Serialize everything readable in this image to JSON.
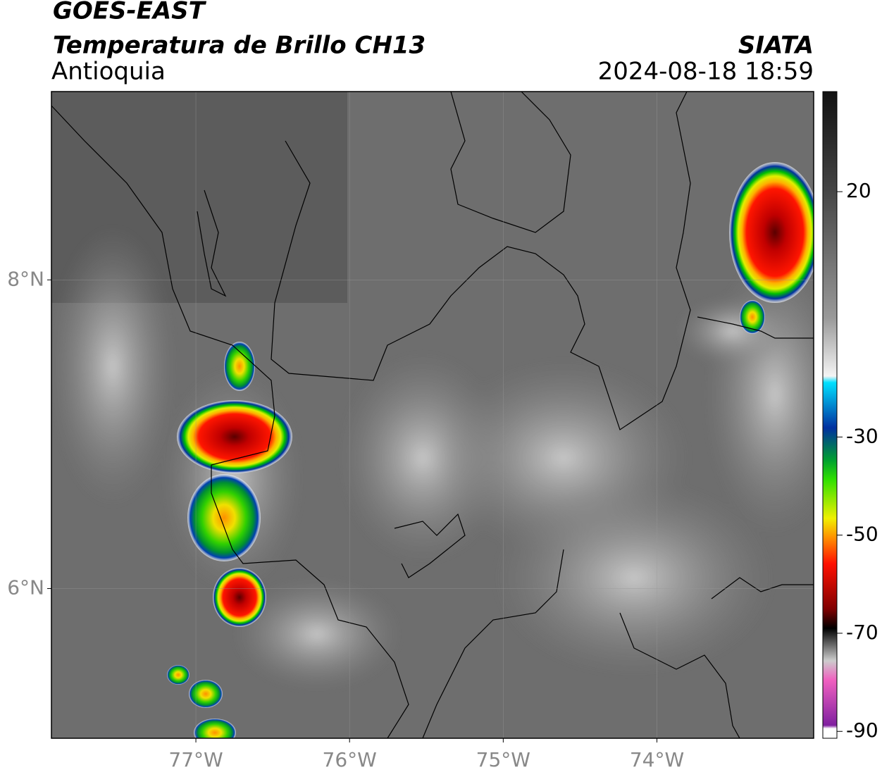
{
  "header": {
    "title": "GOES-EAST",
    "subtitle": "Temperatura de Brillo CH13",
    "region": "Antioquia",
    "source": "SIATA",
    "datetime": "2024-08-18 18:59"
  },
  "map": {
    "xlim": [
      -77.94,
      -72.98
    ],
    "ylim": [
      5.03,
      9.22
    ],
    "xticks": [
      {
        "value": -77,
        "label": "77°W"
      },
      {
        "value": -76,
        "label": "76°W"
      },
      {
        "value": -75,
        "label": "75°W"
      },
      {
        "value": -74,
        "label": "74°W"
      }
    ],
    "yticks": [
      {
        "value": 6,
        "label": "6°N"
      },
      {
        "value": 8,
        "label": "8°N"
      }
    ],
    "grid": true
  },
  "colorbar": {
    "lim": [
      -91.4,
      40.4
    ],
    "ticks": [
      20,
      -30,
      -50,
      -70,
      -90
    ]
  }
}
